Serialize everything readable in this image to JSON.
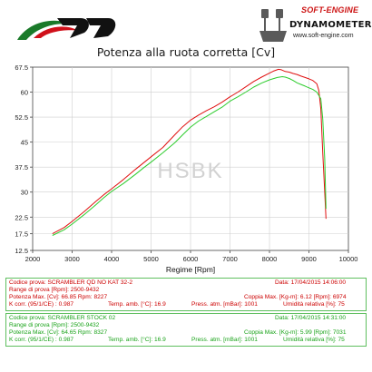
{
  "header": {
    "brand_line1": "SOFT-ENGINE",
    "brand_line2": "DYNAMOMETERS",
    "brand_url": "www.soft-engine.com",
    "logo_tag": "SOFT-ENGINE"
  },
  "colors": {
    "series_red": "#e01010",
    "series_green": "#2ccc2c",
    "panel_border": "#5fbf5f",
    "logo_red": "#d0101a"
  },
  "chart_data": {
    "type": "line",
    "title": "Potenza alla ruota corretta [Cv]",
    "xlabel": "Regime [Rpm]",
    "ylabel": "",
    "xlim": [
      2000,
      10000
    ],
    "ylim": [
      12.5,
      67.5
    ],
    "x_ticks": [
      "2000",
      "3000",
      "4000",
      "5000",
      "6000",
      "7000",
      "8000",
      "9000",
      "10000"
    ],
    "y_ticks": [
      "12.5",
      "17.5",
      "22.5",
      "27.5",
      "32.5",
      "37.5",
      "42.5",
      "47.5",
      "52.5",
      "57.5",
      "62.5",
      "67.5"
    ],
    "y_tick_labels": [
      "12.5",
      "",
      "",
      "",
      "",
      "",
      "",
      "",
      "",
      "",
      "",
      "67.5"
    ],
    "y_tick_label_list": [
      {
        "v": 12.5,
        "t": "12.5"
      },
      {
        "v": 17.5,
        "t": "17.5"
      },
      {
        "v": 22.5,
        "t": "22.5"
      },
      {
        "v": 30,
        "t": "30"
      },
      {
        "v": 37.5,
        "t": "37.5"
      },
      {
        "v": 45,
        "t": "45"
      },
      {
        "v": 52.5,
        "t": "52.5"
      },
      {
        "v": 60,
        "t": "60"
      },
      {
        "v": 67.5,
        "t": "67.5"
      }
    ],
    "watermark": "HSBK",
    "series": [
      {
        "label": "Codice prova: SCRAMBLER QD NO KAT 32-2",
        "color": "#e01010",
        "x": [
          2500,
          2800,
          3000,
          3300,
          3600,
          3800,
          4000,
          4300,
          4600,
          4800,
          5000,
          5300,
          5600,
          5800,
          6000,
          6200,
          6400,
          6600,
          6800,
          7000,
          7200,
          7400,
          7600,
          7800,
          8000,
          8100,
          8227,
          8300,
          8400,
          8500,
          8600,
          8700,
          8800,
          8900,
          9000,
          9100,
          9200,
          9250,
          9300,
          9350,
          9400,
          9432
        ],
        "y": [
          17.5,
          19.4,
          21.2,
          24.1,
          27.2,
          29.2,
          31.0,
          33.8,
          36.8,
          38.7,
          40.6,
          43.4,
          47.2,
          49.6,
          51.6,
          53.1,
          54.4,
          55.6,
          57.0,
          58.6,
          60.0,
          61.6,
          63.2,
          64.5,
          65.7,
          66.3,
          66.85,
          66.7,
          66.2,
          66.0,
          65.6,
          65.3,
          64.8,
          64.4,
          64.0,
          63.5,
          62.5,
          60.5,
          55.0,
          42.0,
          30.0,
          22.0
        ]
      },
      {
        "label": "Codice prova: SCRAMBLER STOCK 02",
        "color": "#2ccc2c",
        "x": [
          2500,
          2800,
          3000,
          3300,
          3600,
          3800,
          4000,
          4300,
          4600,
          4800,
          5000,
          5300,
          5600,
          5800,
          6000,
          6200,
          6400,
          6600,
          6800,
          7000,
          7200,
          7400,
          7600,
          7800,
          8000,
          8200,
          8327,
          8400,
          8500,
          8600,
          8700,
          8800,
          8900,
          9000,
          9100,
          9200,
          9300,
          9350,
          9400,
          9432
        ],
        "y": [
          17.0,
          18.7,
          20.4,
          23.2,
          26.2,
          28.3,
          30.2,
          32.6,
          35.3,
          37.2,
          39.0,
          41.8,
          44.8,
          47.2,
          49.5,
          51.3,
          52.7,
          54.1,
          55.5,
          57.3,
          58.6,
          60.0,
          61.5,
          62.7,
          63.7,
          64.4,
          64.65,
          64.5,
          64.1,
          63.5,
          62.8,
          62.3,
          61.8,
          61.3,
          60.8,
          60.0,
          58.0,
          52.0,
          40.0,
          25.0
        ]
      }
    ]
  },
  "panel1": {
    "codice": "Codice prova: SCRAMBLER QD NO KAT 32-2",
    "data": "Data: 17/04/2015  14:06:00",
    "range": "Range di prova [Rpm]: 2500-9432",
    "potenza": "Potenza Max. [Cv]: 66.85  Rpm: 8227",
    "coppia": "Coppia Max. [Kg-m]: 6.12  [Rpm]: 6974",
    "kcorr": "K corr. (95/1/CE) : 0.987",
    "temp": "Temp. amb. [°C]: 16.9",
    "press": "Press. atm. [mBar]: 1001",
    "umid": "Umidità relativa [%]: 75"
  },
  "panel2": {
    "codice": "Codice prova: SCRAMBLER STOCK 02",
    "data": "Data: 17/04/2015  14:31:00",
    "range": "Range di prova [Rpm]: 2500-9432",
    "potenza": "Potenza Max. [Cv]: 64.65  Rpm: 8327",
    "coppia": "Coppia Max. [Kg-m]: 5.99  [Rpm]: 7031",
    "kcorr": "K corr. (95/1/CE) : 0.987",
    "temp": "Temp. amb. [°C]: 16.9",
    "press": "Press. atm. [mBar]: 1001",
    "umid": "Umidità relativa [%]: 75"
  }
}
